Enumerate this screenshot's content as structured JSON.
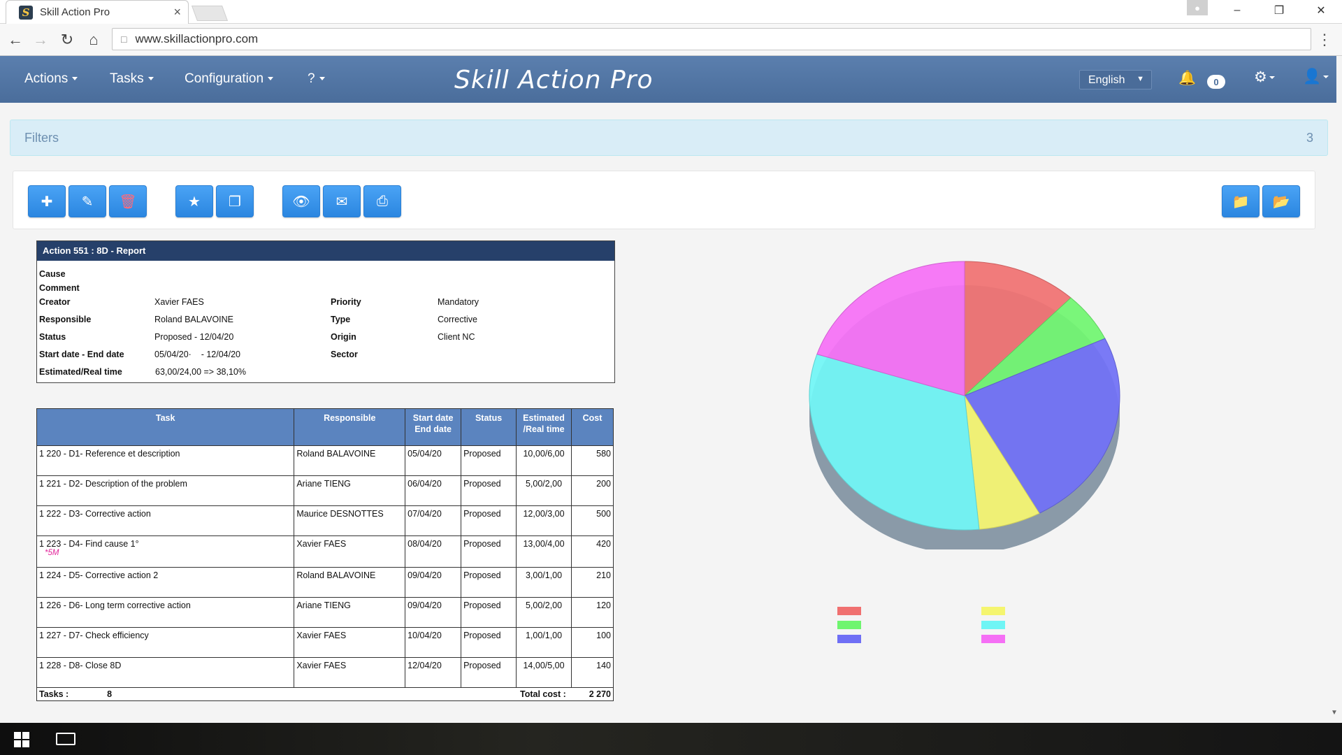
{
  "browser": {
    "tab_title": "Skill Action Pro",
    "tab_close": "×",
    "url": "www.skillactionpro.com",
    "win_min": "–",
    "win_max": "❐",
    "win_close": "✕"
  },
  "nav": {
    "menus": [
      "Actions",
      "Tasks",
      "Configuration",
      "?"
    ],
    "brand": "Skill Action Pro",
    "language": "English",
    "notifications": "0"
  },
  "filters": {
    "label": "Filters",
    "count": "3"
  },
  "toolbar": {
    "icons": [
      "plus-icon",
      "edit-icon",
      "trash-icon",
      "star-icon",
      "copy-icon",
      "eye-icon",
      "envelope-icon",
      "print-icon",
      "folder-icon",
      "folder-open-icon"
    ]
  },
  "report": {
    "header": "Action 551 : 8D - Report",
    "cause_label": "Cause",
    "comment_label": "Comment",
    "creator_label": "Creator",
    "creator": "Xavier FAES",
    "responsible_label": "Responsible",
    "responsible": "Roland BALAVOINE",
    "status_label": "Status",
    "status": "Proposed - 12/04/20",
    "dates_label": "Start date - End date",
    "dates": "05/04/20·    - 12/04/20",
    "time_label": "Estimated/Real time",
    "time": "63,00/24,00 => 38,10%",
    "priority_label": "Priority",
    "priority": "Mandatory",
    "type_label": "Type",
    "type": "Corrective",
    "origin_label": "Origin",
    "origin": "Client NC",
    "sector_label": "Sector"
  },
  "table": {
    "headers": {
      "task": "Task",
      "responsible": "Responsible",
      "start": "Start date",
      "end": "End date",
      "status": "Status",
      "est": "Estimated",
      "real": "/Real time",
      "cost": "Cost"
    },
    "rows": [
      {
        "task": "1 220 -  D1- Reference et description",
        "responsible": "Roland BALAVOINE",
        "date": "05/04/20",
        "status": "Proposed",
        "time": "10,00/6,00",
        "cost": "580"
      },
      {
        "task": "1 221 - D2- Description of the problem",
        "responsible": "Ariane TIENG",
        "date": "06/04/20",
        "status": "Proposed",
        "time": "5,00/2,00",
        "cost": "200"
      },
      {
        "task": "1 222 - D3- Corrective action",
        "responsible": "Maurice DESNOTTES",
        "date": "07/04/20",
        "status": "Proposed",
        "time": "12,00/3,00",
        "cost": "500"
      },
      {
        "task": "1 223 - D4- Find cause 1°",
        "note": "*5M",
        "responsible": "Xavier FAES",
        "date": "08/04/20",
        "status": "Proposed",
        "time": "13,00/4,00",
        "cost": "420"
      },
      {
        "task": "1 224 - D5- Corrective action 2",
        "responsible": "Roland BALAVOINE",
        "date": "09/04/20",
        "status": "Proposed",
        "time": "3,00/1,00",
        "cost": "210"
      },
      {
        "task": "1 226 - D6- Long term corrective action",
        "responsible": "Ariane TIENG",
        "date": "09/04/20",
        "status": "Proposed",
        "time": "5,00/2,00",
        "cost": "120"
      },
      {
        "task": "1 227 - D7- Check efficiency",
        "responsible": "Xavier FAES",
        "date": "10/04/20",
        "status": "Proposed",
        "time": "1,00/1,00",
        "cost": "100"
      },
      {
        "task": "1 228 - D8- Close 8D",
        "responsible": "Xavier FAES",
        "date": "12/04/20",
        "status": "Proposed",
        "time": "14,00/5,00",
        "cost": "140"
      }
    ],
    "footer": {
      "tasks_label": "Tasks :",
      "tasks_count": "8",
      "total_label": "Total cost :",
      "total": "2 270"
    }
  },
  "chart_data": {
    "type": "pie",
    "series": [
      {
        "color": "#f07070",
        "value": 12.0
      },
      {
        "color": "#6ff56f",
        "value": 6.0
      },
      {
        "color": "#6f6ff5",
        "value": 24.0
      },
      {
        "color": "#f5f56f",
        "value": 6.5
      },
      {
        "color": "#6ff5f5",
        "value": 31.5
      },
      {
        "color": "#f56ff5",
        "value": 20.0
      }
    ],
    "legend": [
      {
        "color": "#f07070"
      },
      {
        "color": "#6ff56f"
      },
      {
        "color": "#6f6ff5"
      },
      {
        "color": "#f5f56f"
      },
      {
        "color": "#6ff5f5"
      },
      {
        "color": "#f56ff5"
      }
    ]
  }
}
